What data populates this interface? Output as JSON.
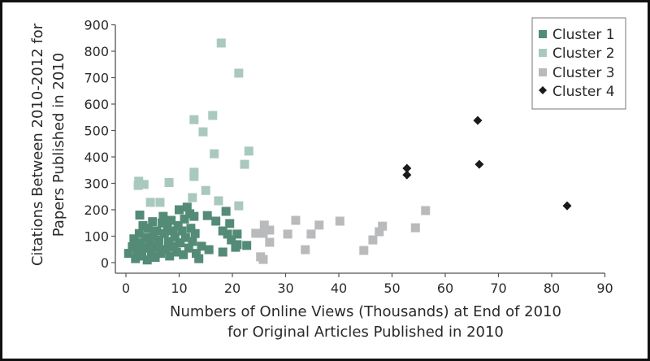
{
  "chart_data": {
    "type": "scatter",
    "title": "",
    "xlabel": [
      "Numbers of Online Views (Thousands) at End of 2010",
      "for Original Articles Published in 2010"
    ],
    "ylabel": [
      "Citations Between 2010-2012 for",
      "Papers Published in 2010"
    ],
    "xlim": [
      0,
      90
    ],
    "ylim": [
      0,
      900
    ],
    "xticks": [
      0,
      10,
      20,
      30,
      40,
      50,
      60,
      70,
      80,
      90
    ],
    "yticks": [
      0,
      100,
      200,
      300,
      400,
      500,
      600,
      700,
      800,
      900
    ],
    "grid": false,
    "legend_position": "top-right",
    "series": [
      {
        "name": "Cluster 1",
        "marker": "square",
        "color": "#538b77",
        "points": [
          [
            0.5,
            35
          ],
          [
            1.2,
            60
          ],
          [
            1.5,
            90
          ],
          [
            1.8,
            15
          ],
          [
            2.2,
            45
          ],
          [
            2.5,
            110
          ],
          [
            2.6,
            180
          ],
          [
            2.8,
            75
          ],
          [
            3.0,
            25
          ],
          [
            3.2,
            140
          ],
          [
            3.5,
            55
          ],
          [
            3.8,
            95
          ],
          [
            4.0,
            10
          ],
          [
            4.2,
            130
          ],
          [
            4.5,
            70
          ],
          [
            4.8,
            40
          ],
          [
            5.0,
            155
          ],
          [
            5.2,
            100
          ],
          [
            5.5,
            20
          ],
          [
            5.8,
            120
          ],
          [
            6.0,
            60
          ],
          [
            6.2,
            85
          ],
          [
            6.5,
            35
          ],
          [
            6.8,
            150
          ],
          [
            7.0,
            175
          ],
          [
            7.2,
            110
          ],
          [
            7.5,
            50
          ],
          [
            7.8,
            140
          ],
          [
            8.0,
            80
          ],
          [
            8.2,
            25
          ],
          [
            8.5,
            160
          ],
          [
            8.8,
            120
          ],
          [
            9.0,
            60
          ],
          [
            9.2,
            95
          ],
          [
            9.5,
            40
          ],
          [
            9.8,
            140
          ],
          [
            10.0,
            200
          ],
          [
            10.2,
            75
          ],
          [
            10.5,
            120
          ],
          [
            10.8,
            30
          ],
          [
            11.0,
            165
          ],
          [
            11.2,
            95
          ],
          [
            11.5,
            210
          ],
          [
            11.8,
            55
          ],
          [
            12.0,
            185
          ],
          [
            12.2,
            130
          ],
          [
            12.5,
            80
          ],
          [
            12.8,
            175
          ],
          [
            13.0,
            110
          ],
          [
            13.2,
            35
          ],
          [
            13.7,
            15
          ],
          [
            14.2,
            62
          ],
          [
            15.3,
            178
          ],
          [
            15.6,
            49
          ],
          [
            16.9,
            157
          ],
          [
            18.2,
            120
          ],
          [
            18.2,
            40
          ],
          [
            18.8,
            194
          ],
          [
            19.1,
            108
          ],
          [
            19.5,
            148
          ],
          [
            19.8,
            86
          ],
          [
            20.6,
            58
          ],
          [
            20.9,
            108
          ],
          [
            20.9,
            68
          ],
          [
            22.7,
            65
          ]
        ]
      },
      {
        "name": "Cluster 2",
        "marker": "square",
        "color": "#a9c9bd",
        "points": [
          [
            17.9,
            831
          ],
          [
            21.2,
            717
          ],
          [
            16.3,
            557
          ],
          [
            12.8,
            541
          ],
          [
            14.5,
            495
          ],
          [
            16.6,
            412
          ],
          [
            23.1,
            422
          ],
          [
            22.3,
            372
          ],
          [
            12.8,
            342
          ],
          [
            12.8,
            326
          ],
          [
            8.1,
            303
          ],
          [
            2.4,
            308
          ],
          [
            2.3,
            292
          ],
          [
            3.4,
            296
          ],
          [
            15.0,
            273
          ],
          [
            12.5,
            246
          ],
          [
            4.6,
            228
          ],
          [
            6.4,
            228
          ],
          [
            17.4,
            234
          ],
          [
            21.2,
            215
          ]
        ]
      },
      {
        "name": "Cluster 3",
        "marker": "square",
        "color": "#b9babc",
        "points": [
          [
            24.4,
            111
          ],
          [
            26.0,
            142
          ],
          [
            27.0,
            123
          ],
          [
            25.8,
            111
          ],
          [
            27.0,
            77
          ],
          [
            25.3,
            22
          ],
          [
            25.8,
            12
          ],
          [
            30.4,
            108
          ],
          [
            31.9,
            160
          ],
          [
            33.7,
            49
          ],
          [
            34.8,
            108
          ],
          [
            36.3,
            142
          ],
          [
            40.2,
            157
          ],
          [
            44.7,
            46
          ],
          [
            46.4,
            86
          ],
          [
            47.6,
            117
          ],
          [
            48.2,
            138
          ],
          [
            54.4,
            132
          ],
          [
            56.3,
            197
          ]
        ]
      },
      {
        "name": "Cluster 4",
        "marker": "diamond",
        "color": "#1a1a1a",
        "points": [
          [
            66.1,
            538
          ],
          [
            66.4,
            372
          ],
          [
            52.8,
            357
          ],
          [
            52.8,
            332
          ],
          [
            82.9,
            215
          ]
        ]
      }
    ]
  },
  "legend": {
    "items": [
      {
        "label": "Cluster 1",
        "color": "#538b77",
        "marker": "square"
      },
      {
        "label": "Cluster 2",
        "color": "#a9c9bd",
        "marker": "square"
      },
      {
        "label": "Cluster 3",
        "color": "#b9babc",
        "marker": "square"
      },
      {
        "label": "Cluster 4",
        "color": "#1a1a1a",
        "marker": "diamond"
      }
    ]
  },
  "colors": {
    "axis": "#555555",
    "text": "#2a2a2a",
    "frame": "#111111"
  }
}
